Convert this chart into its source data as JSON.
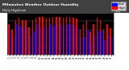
{
  "title": "Milwaukee Weather Outdoor Humidity",
  "subtitle": "Daily High/Low",
  "background_color": "#ffffff",
  "plot_bg_color": "#000000",
  "header_bg_color": "#404040",
  "bar_width": 0.35,
  "high_color": "#ff0000",
  "low_color": "#0000ff",
  "high_label": "High",
  "low_label": "Low",
  "ylim": [
    0,
    100
  ],
  "yticks": [
    20,
    40,
    60,
    80,
    100
  ],
  "categories": [
    "1",
    "2",
    "3",
    "4",
    "5",
    "6",
    "7",
    "8",
    "9",
    "10",
    "11",
    "12",
    "13",
    "14",
    "15",
    "16",
    "17",
    "18",
    "19",
    "20",
    "21",
    "22",
    "23",
    "24",
    "25",
    "26",
    "27",
    "28",
    "29",
    "30",
    "31"
  ],
  "high_values": [
    72,
    60,
    82,
    88,
    82,
    82,
    65,
    82,
    88,
    90,
    90,
    88,
    88,
    90,
    90,
    90,
    88,
    90,
    90,
    88,
    85,
    60,
    72,
    82,
    55,
    72,
    88,
    82,
    60,
    72,
    62
  ],
  "low_values": [
    58,
    42,
    72,
    68,
    65,
    65,
    45,
    55,
    72,
    62,
    68,
    62,
    72,
    68,
    72,
    72,
    68,
    72,
    72,
    68,
    62,
    38,
    42,
    60,
    28,
    45,
    55,
    58,
    35,
    48,
    42
  ]
}
